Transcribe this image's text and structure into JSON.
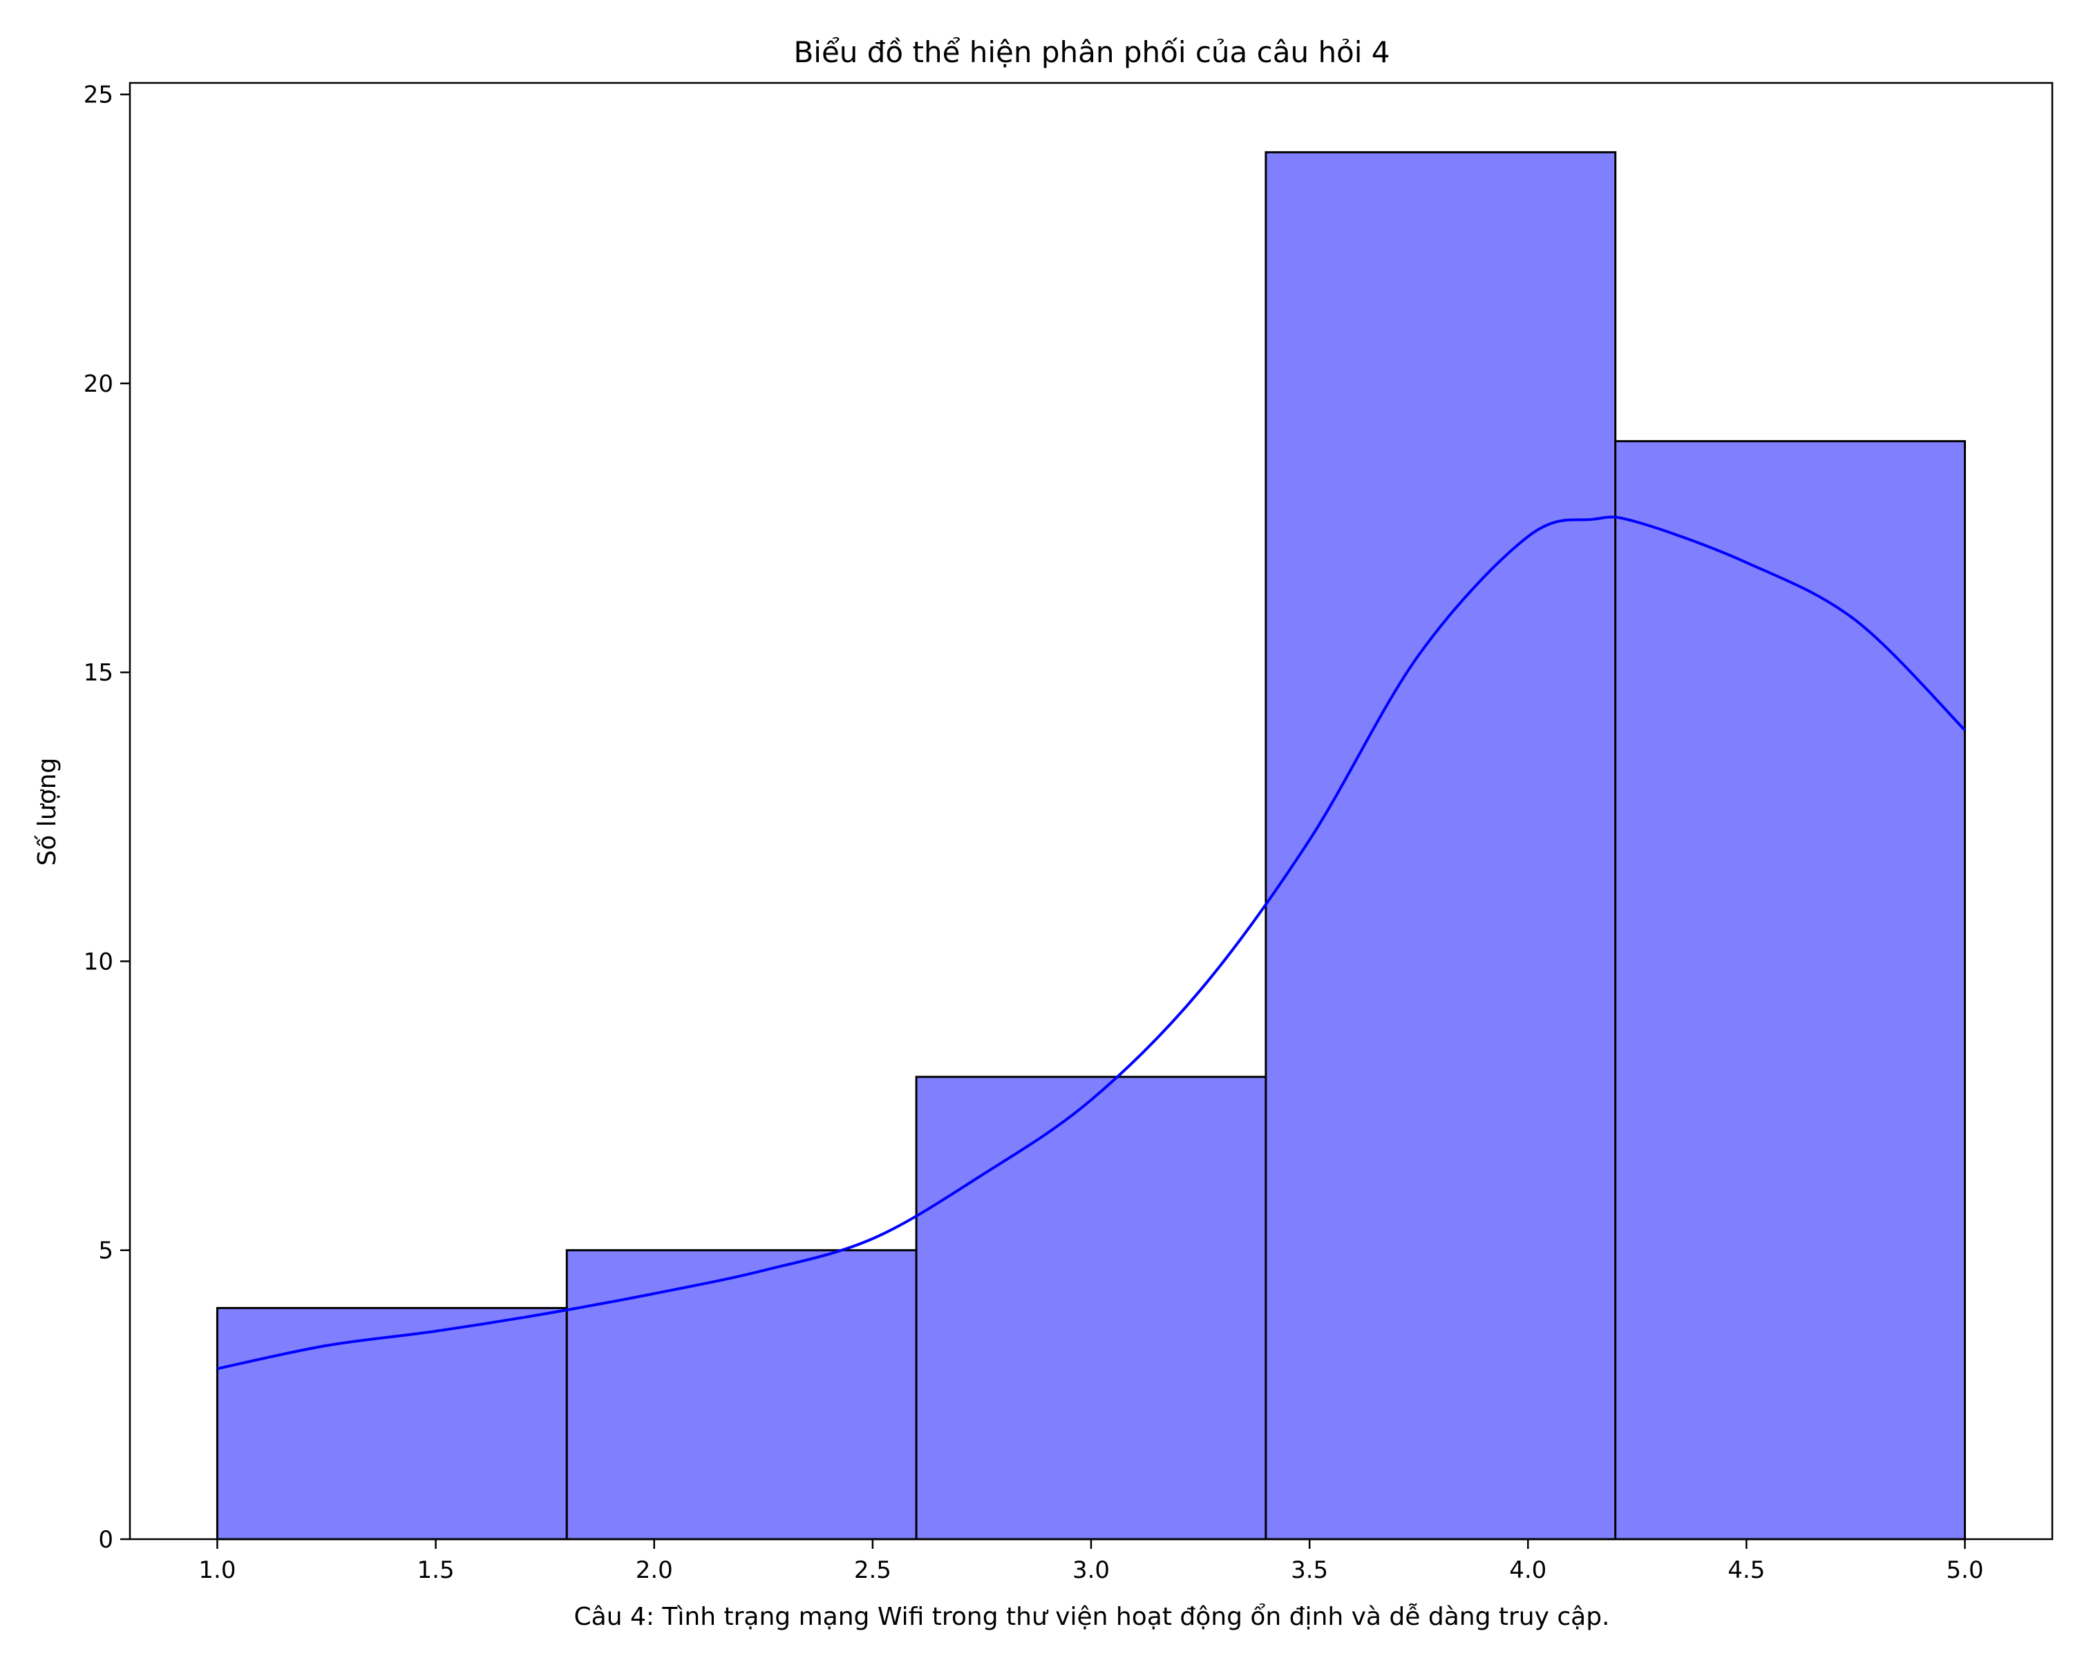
{
  "chart_data": {
    "type": "bar",
    "subtype": "histogram",
    "title": "Biểu đồ thể hiện phân phối của câu hỏi 4",
    "xlabel": "Câu 4: Tình trạng mạng Wifi trong thư viện hoạt động ổn định và dễ dàng truy cập.",
    "ylabel": "Số lượng",
    "xlim": [
      0.8,
      5.2
    ],
    "ylim": [
      0,
      25.2
    ],
    "xticks": [
      1.0,
      1.5,
      2.0,
      2.5,
      3.0,
      3.5,
      4.0,
      4.5,
      5.0
    ],
    "xtick_labels": [
      "1.0",
      "1.5",
      "2.0",
      "2.5",
      "3.0",
      "3.5",
      "4.0",
      "4.5",
      "5.0"
    ],
    "yticks": [
      0,
      5,
      10,
      15,
      20,
      25
    ],
    "ytick_labels": [
      "0",
      "5",
      "10",
      "15",
      "20",
      "25"
    ],
    "bins": [
      {
        "x0": 1.0,
        "x1": 1.8,
        "count": 4
      },
      {
        "x0": 1.8,
        "x1": 2.6,
        "count": 5
      },
      {
        "x0": 2.6,
        "x1": 3.4,
        "count": 8
      },
      {
        "x0": 3.4,
        "x1": 4.2,
        "count": 24
      },
      {
        "x0": 4.2,
        "x1": 5.0,
        "count": 19
      }
    ],
    "kde": {
      "x": [
        1.0,
        1.25,
        1.5,
        1.75,
        2.0,
        2.25,
        2.5,
        2.75,
        3.0,
        3.25,
        3.5,
        3.75,
        4.0,
        4.15,
        4.25,
        4.5,
        4.75,
        5.0
      ],
      "y": [
        2.95,
        3.35,
        3.6,
        3.9,
        4.25,
        4.65,
        5.2,
        6.3,
        7.6,
        9.5,
        12.1,
        15.3,
        17.35,
        17.65,
        17.6,
        16.9,
        15.9,
        14.0
      ]
    },
    "bar_color": "#8080ff",
    "edge_color": "#000000",
    "kde_color": "#0000ff",
    "grid": false,
    "legend": "none"
  }
}
